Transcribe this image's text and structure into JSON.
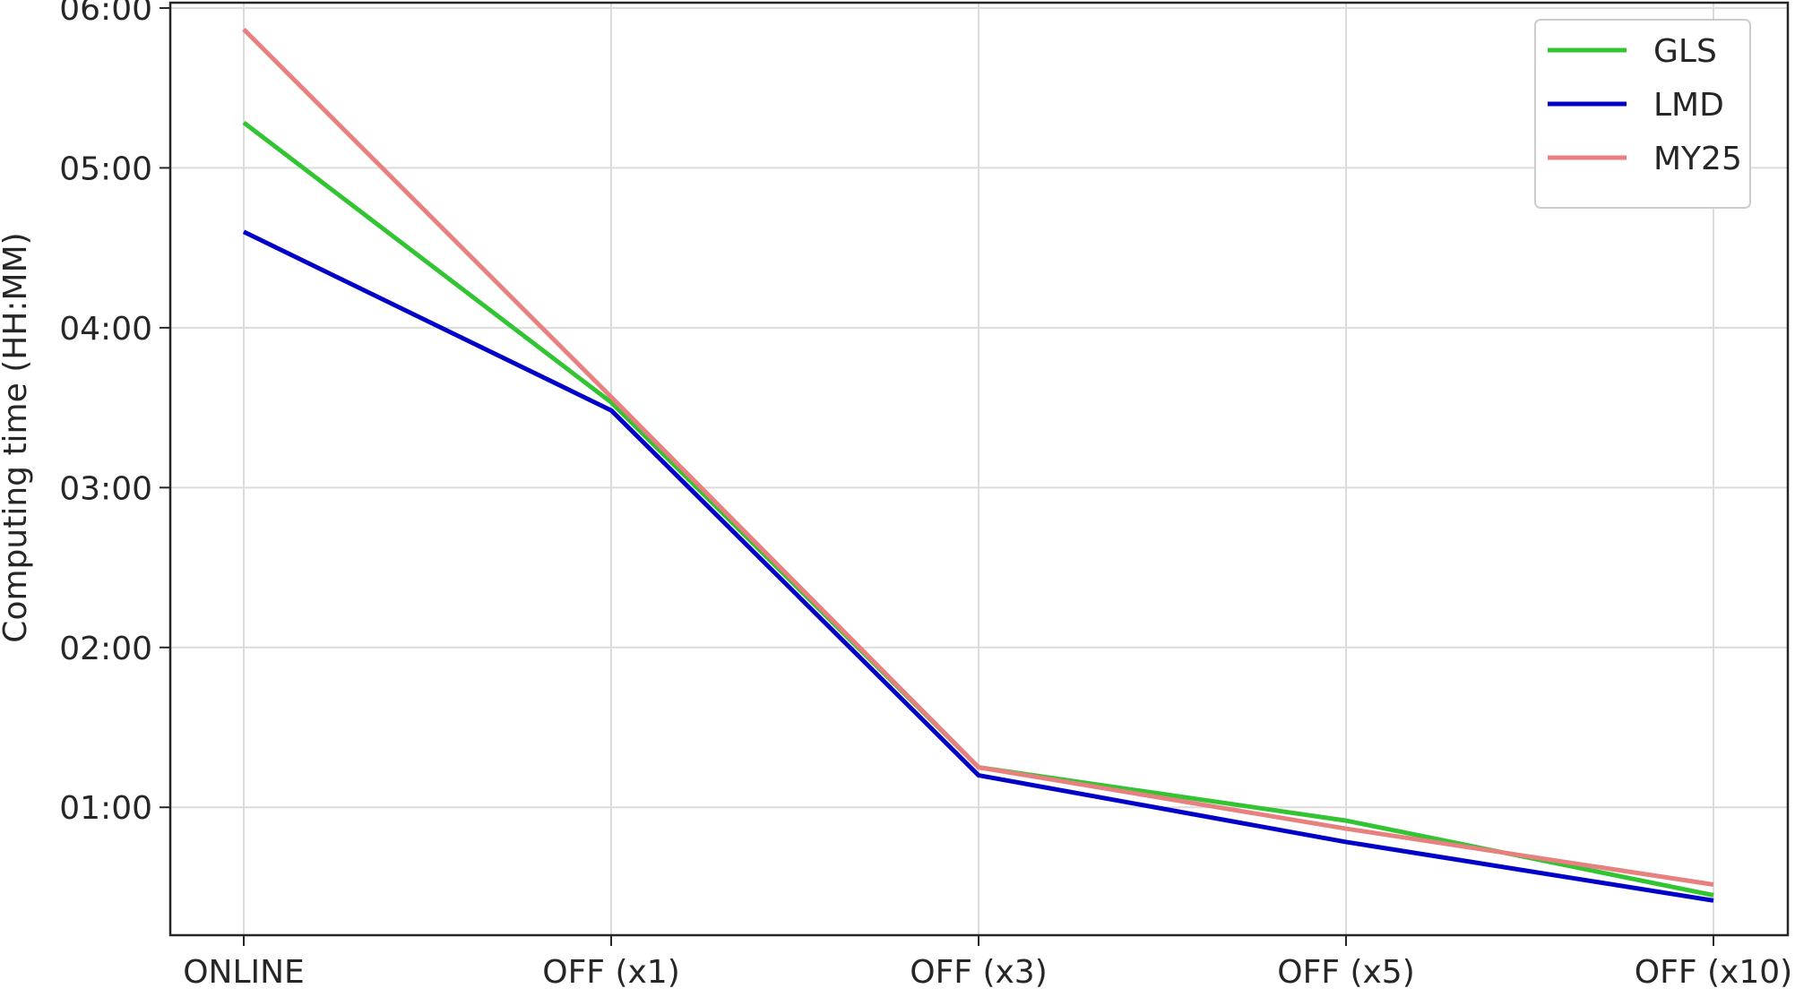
{
  "chart_data": {
    "type": "line",
    "title": "",
    "xlabel": "",
    "ylabel": "Computing time (HH:MM)",
    "categories": [
      "ONLINE",
      "OFF (x1)",
      "OFF (x3)",
      "OFF (x5)",
      "OFF (x10)"
    ],
    "y_unit": "minutes",
    "ylim": [
      12,
      362
    ],
    "yticks": [
      {
        "value": 60,
        "label": "01:00"
      },
      {
        "value": 120,
        "label": "02:00"
      },
      {
        "value": 180,
        "label": "03:00"
      },
      {
        "value": 240,
        "label": "04:00"
      },
      {
        "value": 300,
        "label": "05:00"
      },
      {
        "value": 360,
        "label": "06:00"
      }
    ],
    "grid": true,
    "legend_position": "top-right",
    "series": [
      {
        "name": "GLS",
        "color": "#33c433",
        "values": [
          317,
          212,
          75,
          55,
          27
        ]
      },
      {
        "name": "LMD",
        "color": "#0000c8",
        "values": [
          276,
          209,
          72,
          47,
          25
        ]
      },
      {
        "name": "MY25",
        "color": "#e88080",
        "values": [
          352,
          214,
          75,
          52,
          31
        ]
      }
    ]
  }
}
